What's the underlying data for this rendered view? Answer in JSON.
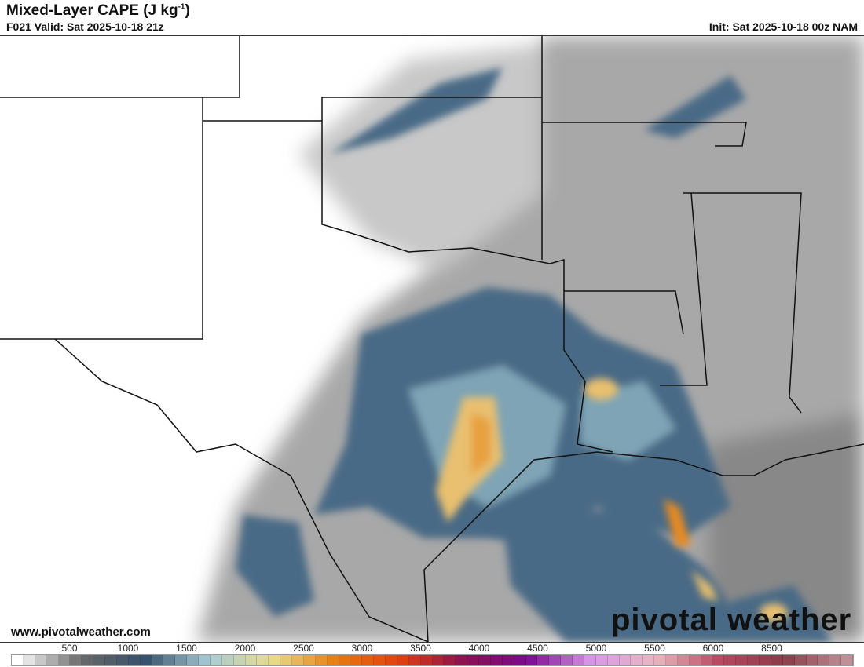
{
  "header": {
    "title": "Mixed-Layer CAPE (J kg",
    "title_sup": "-1",
    "title_end": ")",
    "valid": "F021 Valid: Sat 2025-10-18 21z",
    "init": "Init: Sat 2025-10-18 00z NAM"
  },
  "footer": {
    "url": "www.pivotalweather.com",
    "logo": "pivotal weather"
  },
  "colorbar": {
    "ticks": [
      "500",
      "1000",
      "1500",
      "2000",
      "2500",
      "3000",
      "3500",
      "4000",
      "4500",
      "5000",
      "5500",
      "6000",
      "8500"
    ],
    "stops": [
      "#ffffff",
      "#6a6a6a",
      "#34506a",
      "#a8cdd6",
      "#e8dc8c",
      "#e67c10",
      "#e04010",
      "#8a1050",
      "#7a0a90",
      "#d898e8",
      "#e8b8c0",
      "#b84860",
      "#8a3c48",
      "#c09098"
    ]
  },
  "map": {
    "region": "Southern Plains / Texas / Louisiana",
    "colors": {
      "gray": "#8a8a8a",
      "blue": "#4a6a86",
      "lightblue": "#8ab0c0",
      "yellow": "#e8c070",
      "orange": "#e88a20"
    }
  }
}
